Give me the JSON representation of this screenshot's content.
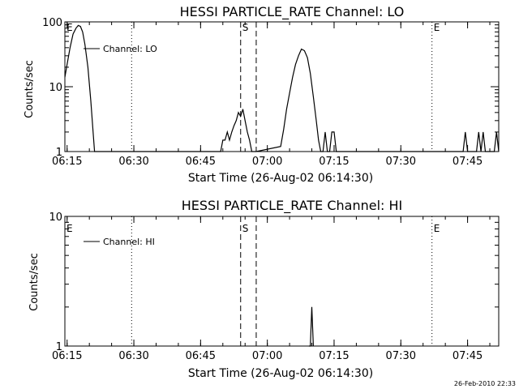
{
  "footer": {
    "timestamp": "26-Feb-2010 22:33"
  },
  "chart_data": [
    {
      "type": "line",
      "title": "HESSI PARTICLE_RATE Channel: LO",
      "xlabel": "Start Time (26-Aug-02 06:14:30)",
      "ylabel": "Counts/sec",
      "yscale": "log",
      "ylim": [
        1,
        100
      ],
      "xlim": [
        "06:14:30",
        "07:52:00"
      ],
      "x_ticks": [
        "06:15",
        "06:30",
        "06:45",
        "07:00",
        "07:15",
        "07:30",
        "07:45"
      ],
      "y_ticks": [
        "1",
        "10",
        "100"
      ],
      "legend": {
        "position": "upper-left",
        "entries": [
          "Channel: LO"
        ]
      },
      "markers": [
        {
          "label": "E",
          "time": "06:14:30",
          "style": "dotted"
        },
        {
          "label": "",
          "time": "06:29:30",
          "style": "dotted"
        },
        {
          "label": "S",
          "time": "06:54:00",
          "style": "dashed"
        },
        {
          "label": "",
          "time": "06:57:30",
          "style": "dashed"
        },
        {
          "label": "E",
          "time": "07:37:00",
          "style": "dotted"
        },
        {
          "label": "",
          "time": "07:52:00",
          "style": "dotted"
        }
      ],
      "series": [
        {
          "name": "Channel: LO",
          "x": [
            "06:14:30",
            "06:15:00",
            "06:15:40",
            "06:16:20",
            "06:17:00",
            "06:17:30",
            "06:18:00",
            "06:18:30",
            "06:19:00",
            "06:19:40",
            "06:20:20",
            "06:20:50",
            "06:21:10",
            "06:49:30",
            "06:50:00",
            "06:50:30",
            "06:51:00",
            "06:51:30",
            "06:52:00",
            "06:52:30",
            "06:53:00",
            "06:53:30",
            "06:54:00",
            "06:54:30",
            "06:55:00",
            "06:55:30",
            "06:56:00",
            "06:56:30",
            "06:57:00",
            "06:57:30",
            "07:03:00",
            "07:03:40",
            "07:04:20",
            "07:05:00",
            "07:05:40",
            "07:06:20",
            "07:07:00",
            "07:07:40",
            "07:08:20",
            "07:09:00",
            "07:09:40",
            "07:10:20",
            "07:11:00",
            "07:11:30",
            "07:12:00",
            "07:12:30",
            "07:13:00",
            "07:13:30",
            "07:14:00",
            "07:14:30",
            "07:15:00",
            "07:15:30",
            "07:44:00",
            "07:44:30",
            "07:45:00",
            "07:45:30",
            "07:46:00",
            "07:46:30",
            "07:47:00",
            "07:47:30",
            "07:48:00",
            "07:48:30",
            "07:49:00",
            "07:49:30",
            "07:50:00",
            "07:50:30",
            "07:51:00",
            "07:51:30",
            "07:52:00"
          ],
          "y": [
            14,
            22,
            40,
            65,
            80,
            88,
            85,
            70,
            45,
            20,
            6,
            2,
            1,
            1,
            1.5,
            1.5,
            2,
            1.5,
            2,
            2.5,
            3,
            4,
            3.5,
            4.5,
            3,
            2,
            1.5,
            1,
            1,
            1,
            1.2,
            2.2,
            4.5,
            8,
            14,
            22,
            30,
            38,
            36,
            28,
            16,
            7,
            3,
            1.5,
            1,
            1,
            2,
            1,
            1,
            2,
            2,
            1,
            1,
            2,
            1,
            1,
            1,
            1,
            1,
            2,
            1,
            2,
            1,
            1,
            1,
            1,
            1,
            2,
            1
          ]
        }
      ]
    },
    {
      "type": "line",
      "title": "HESSI PARTICLE_RATE Channel: HI",
      "xlabel": "Start Time (26-Aug-02 06:14:30)",
      "ylabel": "Counts/sec",
      "yscale": "log",
      "ylim": [
        1,
        10
      ],
      "xlim": [
        "06:14:30",
        "07:52:00"
      ],
      "x_ticks": [
        "06:15",
        "06:30",
        "06:45",
        "07:00",
        "07:15",
        "07:30",
        "07:45"
      ],
      "y_ticks": [
        "1",
        "10"
      ],
      "legend": {
        "position": "upper-left",
        "entries": [
          "Channel: HI"
        ]
      },
      "markers": [
        {
          "label": "E",
          "time": "06:14:30",
          "style": "dotted"
        },
        {
          "label": "",
          "time": "06:29:30",
          "style": "dotted"
        },
        {
          "label": "S",
          "time": "06:54:00",
          "style": "dashed"
        },
        {
          "label": "",
          "time": "06:57:30",
          "style": "dashed"
        },
        {
          "label": "E",
          "time": "07:37:00",
          "style": "dotted"
        },
        {
          "label": "",
          "time": "07:52:00",
          "style": "dotted"
        }
      ],
      "series": [
        {
          "name": "Channel: HI",
          "x": [
            "07:09:20",
            "07:09:40",
            "07:10:00",
            "07:10:20"
          ],
          "y": [
            1,
            1,
            2,
            1
          ]
        }
      ]
    }
  ]
}
